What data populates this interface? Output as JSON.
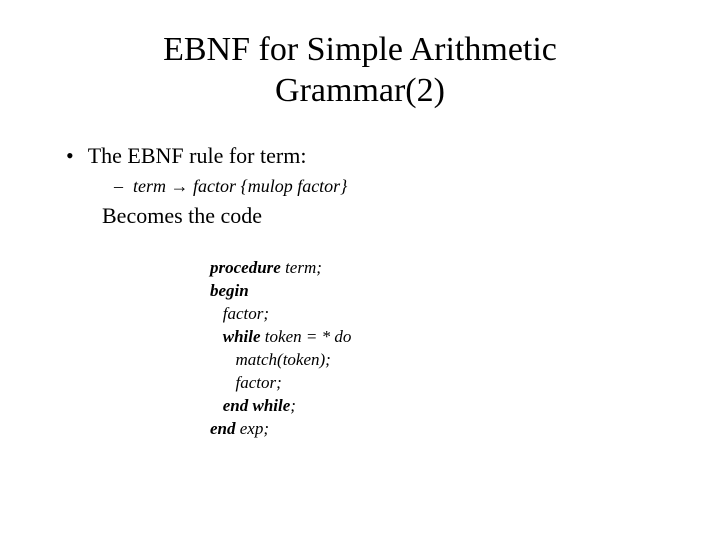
{
  "title_line1": "EBNF for Simple Arithmetic",
  "title_line2": "Grammar(2)",
  "bullet1": "The EBNF rule for term:",
  "dash1": "term → factor {mulop factor}",
  "becomes": "Becomes the code",
  "code": {
    "kw_procedure": "procedure",
    "l1_rest": " term;",
    "kw_begin": "begin",
    "l3": "   factor;",
    "kw_while": "while",
    "l4_rest": " token = * do",
    "l5": "      match(token);",
    "l6": "      factor;",
    "kw_endwhile": "end while",
    "l7_rest": ";",
    "kw_end": "end",
    "l8_rest": " exp;"
  }
}
